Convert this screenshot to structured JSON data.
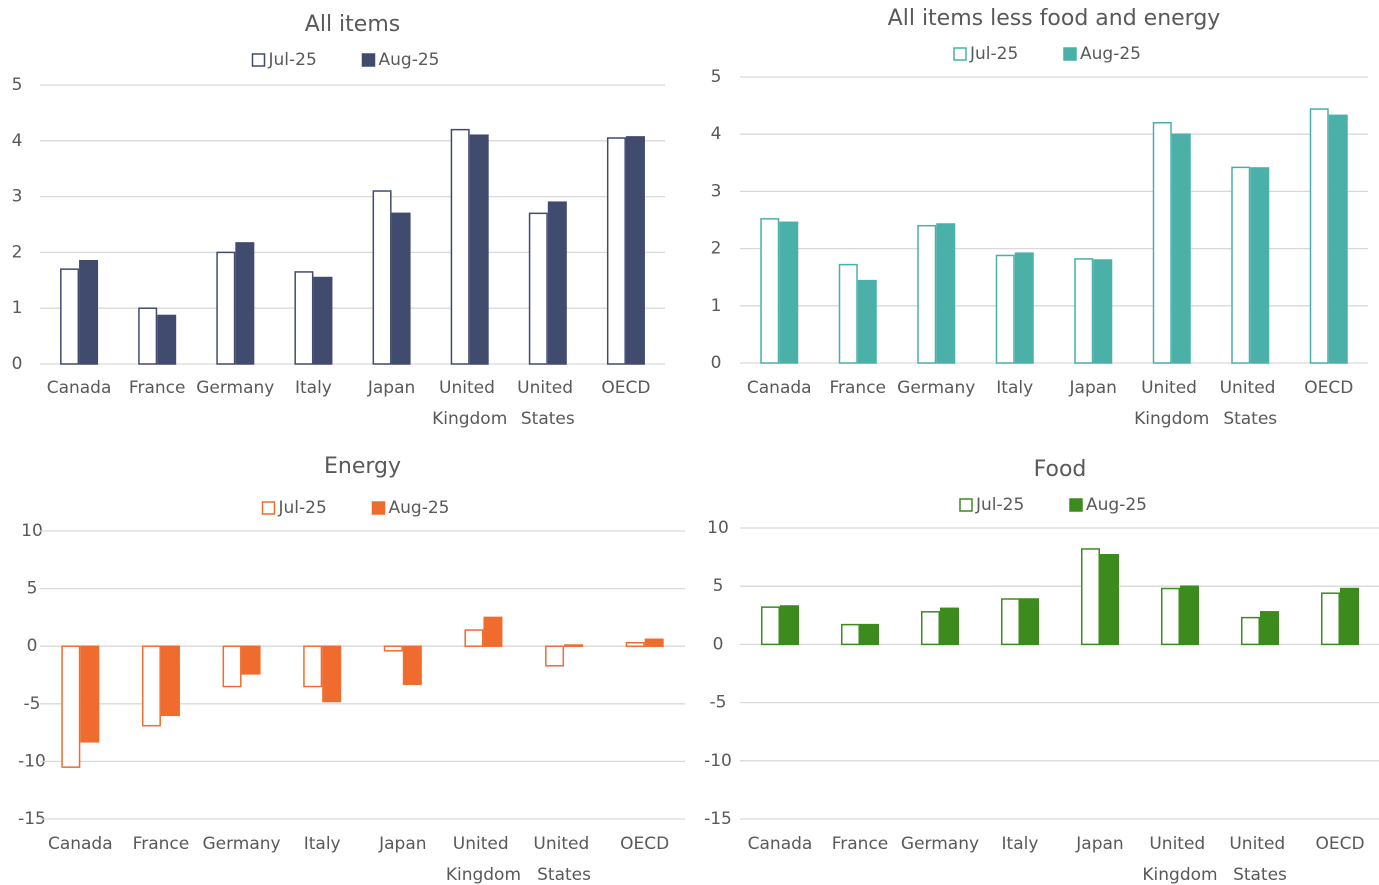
{
  "chart_data": [
    {
      "type": "bar",
      "title": "All items",
      "categories": [
        "Canada",
        "France",
        "Germany",
        "Italy",
        "Japan",
        "United Kingdom",
        "United States",
        "OECD"
      ],
      "series": [
        {
          "name": "Jul-25",
          "color": "#414b6e",
          "fill": "#ffffff",
          "values": [
            1.7,
            1.0,
            2.0,
            1.65,
            3.1,
            4.2,
            2.7,
            4.05
          ]
        },
        {
          "name": "Aug-25",
          "color": "#414b6e",
          "fill": "#414b6e",
          "values": [
            1.85,
            0.87,
            2.17,
            1.55,
            2.7,
            4.1,
            2.9,
            4.07
          ]
        }
      ],
      "ylim": [
        0,
        5
      ],
      "yticks": [
        0,
        1,
        2,
        3,
        4,
        5
      ],
      "grid": true
    },
    {
      "type": "bar",
      "title": "All items less food and energy",
      "categories": [
        "Canada",
        "France",
        "Germany",
        "Italy",
        "Japan",
        "United Kingdom",
        "United States",
        "OECD"
      ],
      "series": [
        {
          "name": "Jul-25",
          "color": "#4ab0a8",
          "fill": "#ffffff",
          "values": [
            2.52,
            1.72,
            2.4,
            1.88,
            1.82,
            4.2,
            3.42,
            4.44
          ]
        },
        {
          "name": "Aug-25",
          "color": "#4ab0a8",
          "fill": "#4ab0a8",
          "values": [
            2.46,
            1.44,
            2.43,
            1.92,
            1.8,
            4.0,
            3.41,
            4.33
          ]
        }
      ],
      "ylim": [
        0,
        5
      ],
      "yticks": [
        0,
        1,
        2,
        3,
        4,
        5
      ],
      "grid": true
    },
    {
      "type": "bar",
      "title": "Energy",
      "categories": [
        "Canada",
        "France",
        "Germany",
        "Italy",
        "Japan",
        "United Kingdom",
        "United States",
        "OECD"
      ],
      "series": [
        {
          "name": "Jul-25",
          "color": "#ef6c2e",
          "fill": "#ffffff",
          "values": [
            -10.5,
            -6.9,
            -3.5,
            -3.5,
            -0.4,
            1.4,
            -1.7,
            0.3
          ]
        },
        {
          "name": "Aug-25",
          "color": "#ef6c2e",
          "fill": "#ef6c2e",
          "values": [
            -8.3,
            -6.0,
            -2.4,
            -4.8,
            -3.3,
            2.5,
            0.1,
            0.6
          ]
        }
      ],
      "ylim": [
        -15,
        10
      ],
      "yticks": [
        -15,
        -10,
        -5,
        0,
        5,
        10
      ],
      "grid": true
    },
    {
      "type": "bar",
      "title": "Food",
      "categories": [
        "Canada",
        "France",
        "Germany",
        "Italy",
        "Japan",
        "United Kingdom",
        "United States",
        "OECD"
      ],
      "series": [
        {
          "name": "Jul-25",
          "color": "#3d8b1e",
          "fill": "#ffffff",
          "values": [
            3.2,
            1.7,
            2.8,
            3.9,
            8.2,
            4.8,
            2.3,
            4.4
          ]
        },
        {
          "name": "Aug-25",
          "color": "#3d8b1e",
          "fill": "#3d8b1e",
          "values": [
            3.3,
            1.7,
            3.1,
            3.9,
            7.7,
            5.0,
            2.8,
            4.8
          ]
        }
      ],
      "ylim": [
        -15,
        10
      ],
      "yticks": [
        -15,
        -10,
        -5,
        0,
        5,
        10
      ],
      "grid": true
    }
  ]
}
